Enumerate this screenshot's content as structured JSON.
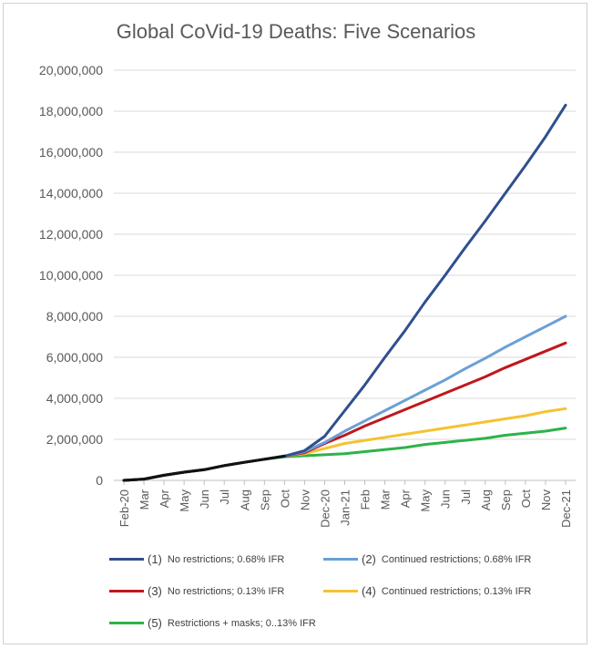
{
  "chart_data": {
    "type": "line",
    "title": "Global CoVid-19 Deaths: Five Scenarios",
    "categories": [
      "Feb-20",
      "Mar",
      "Apr",
      "May",
      "Jun",
      "Jul",
      "Aug",
      "Sep",
      "Oct",
      "Nov",
      "Dec-20",
      "Jan-21",
      "Feb",
      "Mar",
      "Apr",
      "May",
      "Jun",
      "Jul",
      "Aug",
      "Sep",
      "Oct",
      "Nov",
      "Dec-21"
    ],
    "ylim": [
      0,
      20000000
    ],
    "yticks": [
      "0",
      "2,000,000",
      "4,000,000",
      "6,000,000",
      "8,000,000",
      "10,000,000",
      "12,000,000",
      "14,000,000",
      "16,000,000",
      "18,000,000",
      "20,000,000"
    ],
    "grid": true,
    "legend_position": "bottom",
    "series": [
      {
        "name": "No restrictions; 0.68% IFR",
        "num": "(1)",
        "color": "#2f4f8f",
        "values": [
          0,
          60000,
          250000,
          400000,
          520000,
          720000,
          880000,
          1030000,
          1180000,
          1450000,
          2150000,
          3400000,
          4650000,
          6000000,
          7300000,
          8700000,
          10000000,
          11350000,
          12650000,
          14000000,
          15350000,
          16750000,
          18300000
        ]
      },
      {
        "name": "Continued restrictions; 0.68% IFR",
        "num": "(2)",
        "color": "#6aa0d6",
        "values": [
          0,
          60000,
          250000,
          400000,
          520000,
          720000,
          880000,
          1030000,
          1180000,
          1400000,
          1850000,
          2400000,
          2900000,
          3400000,
          3900000,
          4400000,
          4900000,
          5450000,
          5950000,
          6500000,
          7000000,
          7500000,
          8000000
        ]
      },
      {
        "name": "No restrictions; 0.13% IFR",
        "num": "(3)",
        "color": "#c0171d",
        "values": [
          0,
          60000,
          250000,
          400000,
          520000,
          720000,
          880000,
          1030000,
          1180000,
          1350000,
          1800000,
          2200000,
          2650000,
          3050000,
          3450000,
          3850000,
          4250000,
          4650000,
          5050000,
          5500000,
          5900000,
          6300000,
          6700000
        ]
      },
      {
        "name": "Continued restrictions; 0.13% IFR",
        "num": "(4)",
        "color": "#f5c232",
        "values": [
          0,
          60000,
          250000,
          400000,
          520000,
          720000,
          880000,
          1030000,
          1180000,
          1300000,
          1550000,
          1800000,
          1950000,
          2100000,
          2250000,
          2400000,
          2550000,
          2700000,
          2850000,
          3000000,
          3150000,
          3350000,
          3500000
        ]
      },
      {
        "name": "Restrictions + masks; 0..13% IFR",
        "num": "(5)",
        "color": "#2db34a",
        "values": [
          0,
          60000,
          250000,
          400000,
          520000,
          720000,
          880000,
          1030000,
          1150000,
          1200000,
          1250000,
          1300000,
          1400000,
          1500000,
          1600000,
          1750000,
          1850000,
          1950000,
          2050000,
          2200000,
          2300000,
          2400000,
          2550000
        ]
      }
    ]
  }
}
